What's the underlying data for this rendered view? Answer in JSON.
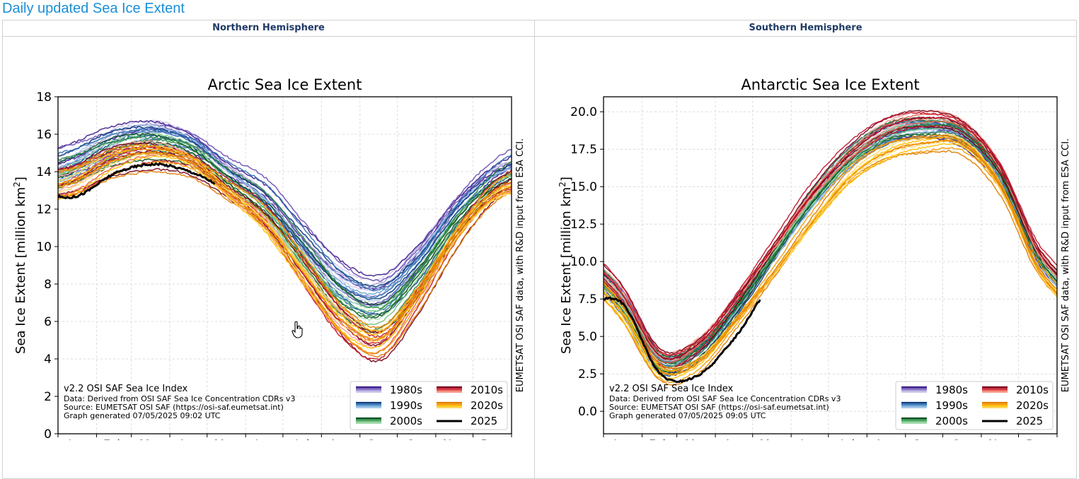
{
  "page": {
    "title": "Daily updated Sea Ice Extent",
    "columns": [
      "Northern Hemisphere",
      "Southern Hemisphere"
    ]
  },
  "colors": {
    "1980s": [
      "#3b1a8a",
      "#6a4fb5",
      "#a59ad6",
      "#cfc8ec"
    ],
    "1990s": [
      "#0b3c7a",
      "#2f6fb3",
      "#6aa3d6",
      "#a9cbe8"
    ],
    "2000s": [
      "#0c4f1f",
      "#2a8a45",
      "#6cc07a",
      "#a8dcb0"
    ],
    "2010s": [
      "#7a0019",
      "#c0152b",
      "#ea5a4e",
      "#f5a093"
    ],
    "2020s": [
      "#e07b00",
      "#f59a00",
      "#ffc000",
      "#ffd866"
    ],
    "2025": "#000000"
  },
  "chart_data": [
    {
      "type": "line",
      "title": "Arctic Sea Ice Extent",
      "ylabel_main": "Sea Ice Extent [million km",
      "ylabel_sup": "2",
      "ylabel_close": "]",
      "ylim": [
        0,
        18
      ],
      "yticks": [
        "0",
        "2",
        "4",
        "6",
        "8",
        "10",
        "12",
        "14",
        "16",
        "18"
      ],
      "xticks": [
        "Jan",
        "Feb",
        "Mar",
        "Apr",
        "May",
        "Jun",
        "Jul",
        "Aug",
        "Sep",
        "Oct",
        "Nov",
        "Dec"
      ],
      "side_text": "EUMETSAT OSI SAF data, with R&D input from ESA CCI.",
      "info": [
        "v2.2 OSI SAF Sea Ice Index",
        "Data: Derived from OSI SAF Sea Ice Concentration CDRs v3",
        "Source: EUMETSAT OSI SAF (https://osi-saf.eumetsat.int)",
        "Graph generated 07/05/2025 09:02 UTC"
      ],
      "legend": [
        "1980s",
        "1990s",
        "2000s",
        "2010s",
        "2020s",
        "2025"
      ],
      "legend_position": "lower-right",
      "grid": true,
      "series": [
        {
          "decade": "1980s",
          "values": [
            14.8,
            15.8,
            16.3,
            15.8,
            14.2,
            12.8,
            10.4,
            8.4,
            7.8,
            9.6,
            12.2,
            14.0
          ]
        },
        {
          "decade": "1990s",
          "values": [
            14.5,
            15.6,
            16.0,
            15.5,
            13.9,
            12.4,
            10.0,
            7.9,
            7.3,
            9.1,
            11.8,
            13.6
          ]
        },
        {
          "decade": "2000s",
          "values": [
            14.1,
            15.2,
            15.6,
            15.1,
            13.5,
            11.9,
            9.4,
            7.0,
            6.3,
            8.4,
            11.2,
            13.2
          ]
        },
        {
          "decade": "2010s",
          "values": [
            13.6,
            14.7,
            15.1,
            14.6,
            13.0,
            11.3,
            8.5,
            5.9,
            4.8,
            7.3,
            10.5,
            12.8
          ]
        },
        {
          "decade": "2020s",
          "values": [
            13.5,
            14.6,
            15.0,
            14.5,
            12.9,
            11.2,
            8.6,
            6.1,
            5.1,
            7.4,
            10.5,
            12.7
          ]
        }
      ],
      "current": {
        "decade": "2025",
        "values": [
          12.7,
          13.9,
          14.4,
          14.0,
          13.0
        ]
      }
    },
    {
      "type": "line",
      "title": "Antarctic Sea Ice Extent",
      "ylabel_main": "Sea Ice Extent [million km",
      "ylabel_sup": "2",
      "ylabel_close": "]",
      "ylim": [
        -1.5,
        21
      ],
      "yticks": [
        "0.0",
        "2.5",
        "5.0",
        "7.5",
        "10.0",
        "12.5",
        "15.0",
        "17.5",
        "20.0"
      ],
      "ytick_values": [
        0,
        2.5,
        5,
        7.5,
        10,
        12.5,
        15,
        17.5,
        20
      ],
      "xticks": [
        "Jan",
        "Feb",
        "Mar",
        "Apr",
        "May",
        "Jun",
        "Jul",
        "Aug",
        "Sep",
        "Oct",
        "Nov",
        "Dec"
      ],
      "side_text": "EUMETSAT OSI SAF data, with R&D input from ESA CCI.",
      "info": [
        "v2.2 OSI SAF Sea Ice Index",
        "Data: Derived from OSI SAF Sea Ice Concentration CDRs v3",
        "Source: EUMETSAT OSI SAF (https://osi-saf.eumetsat.int)",
        "Graph generated 07/05/2025 09:05 UTC"
      ],
      "legend": [
        "1980s",
        "1990s",
        "2000s",
        "2010s",
        "2020s",
        "2025"
      ],
      "legend_position": "lower-right",
      "grid": true,
      "series": [
        {
          "decade": "1980s",
          "values": [
            7.5,
            3.5,
            4.2,
            7.0,
            10.5,
            14.0,
            16.8,
            18.5,
            18.9,
            18.3,
            15.5,
            10.0
          ]
        },
        {
          "decade": "1990s",
          "values": [
            7.0,
            3.2,
            4.0,
            6.8,
            10.3,
            13.8,
            16.6,
            18.4,
            18.9,
            18.5,
            15.6,
            10.2
          ]
        },
        {
          "decade": "2000s",
          "values": [
            7.3,
            3.4,
            4.2,
            7.0,
            10.5,
            14.0,
            16.8,
            18.6,
            19.1,
            18.7,
            15.8,
            10.4
          ]
        },
        {
          "decade": "2010s",
          "values": [
            7.8,
            3.7,
            4.5,
            7.5,
            11.0,
            14.5,
            17.2,
            19.0,
            19.6,
            19.1,
            16.3,
            10.8
          ]
        },
        {
          "decade": "2020s",
          "values": [
            6.5,
            2.7,
            3.2,
            6.0,
            9.2,
            12.6,
            15.6,
            17.3,
            17.9,
            17.8,
            15.0,
            9.5
          ]
        }
      ],
      "current": {
        "decade": "2025",
        "values": [
          7.2,
          2.5,
          2.4,
          5.0,
          8.4
        ]
      }
    }
  ]
}
